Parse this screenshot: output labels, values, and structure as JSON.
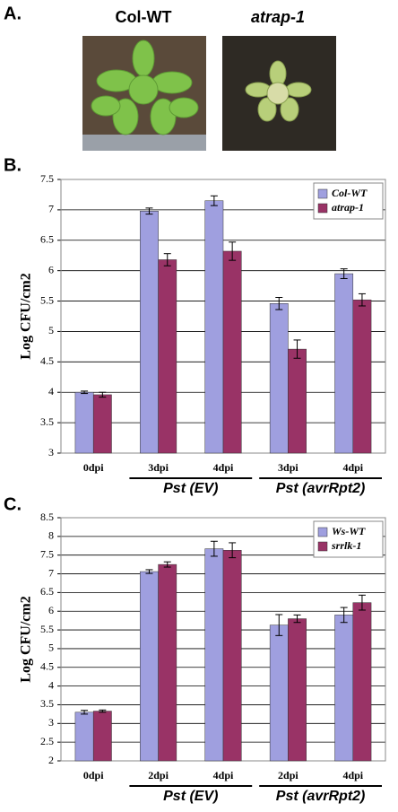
{
  "panel_a": {
    "label": "A.",
    "photos": [
      "Col-WT",
      "atrap-1"
    ]
  },
  "chart_data": [
    {
      "type": "bar",
      "panel_label": "B.",
      "ylabel": "Log CFU/cm2",
      "categories": [
        "0dpi",
        "3dpi",
        "4dpi",
        "3dpi",
        "4dpi"
      ],
      "groups": [
        "Pst (EV)",
        "Pst (avrRpt2)"
      ],
      "series": [
        {
          "name": "Col-WT",
          "color": "#9f9fdf",
          "values": [
            4.0,
            6.98,
            7.15,
            5.46,
            5.95
          ],
          "errors": [
            0.02,
            0.05,
            0.08,
            0.1,
            0.08
          ]
        },
        {
          "name": "atrap-1",
          "color": "#993366",
          "values": [
            3.96,
            6.18,
            6.32,
            4.71,
            5.52
          ],
          "errors": [
            0.04,
            0.1,
            0.15,
            0.15,
            0.1
          ]
        }
      ],
      "ylim": [
        3,
        7.5
      ],
      "yticks": [
        3,
        3.5,
        4,
        4.5,
        5,
        5.5,
        6,
        6.5,
        7,
        7.5
      ],
      "grid": true,
      "legend": "top-right"
    },
    {
      "type": "bar",
      "panel_label": "C.",
      "ylabel": "Log CFU/cm2",
      "categories": [
        "0dpi",
        "2dpi",
        "4dpi",
        "2dpi",
        "4dpi"
      ],
      "groups": [
        "Pst (EV)",
        "Pst (avrRpt2)"
      ],
      "series": [
        {
          "name": "Ws-WT",
          "color": "#9f9fdf",
          "values": [
            3.3,
            7.06,
            7.67,
            5.63,
            5.9
          ],
          "errors": [
            0.05,
            0.05,
            0.2,
            0.28,
            0.2
          ]
        },
        {
          "name": "srrlk-1",
          "color": "#993366",
          "values": [
            3.33,
            7.25,
            7.63,
            5.8,
            6.23
          ],
          "errors": [
            0.03,
            0.07,
            0.2,
            0.1,
            0.2
          ]
        }
      ],
      "ylim": [
        2,
        8.5
      ],
      "yticks": [
        2,
        2.5,
        3,
        3.5,
        4,
        4.5,
        5,
        5.5,
        6,
        6.5,
        7,
        7.5,
        8,
        8.5
      ],
      "grid": true,
      "legend": "top-right"
    }
  ]
}
